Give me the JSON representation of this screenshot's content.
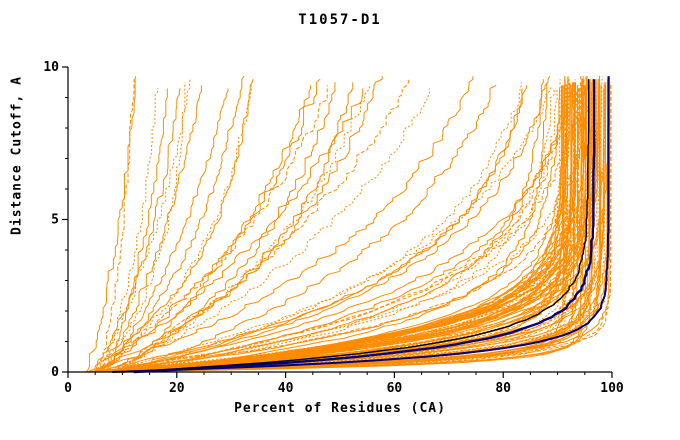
{
  "chart_data": {
    "type": "line",
    "title": "T1057-D1",
    "xlabel": "Percent of Residues (CA)",
    "ylabel": "Distance Cutoff, A",
    "xlim": [
      0,
      100
    ],
    "ylim": [
      0,
      10
    ],
    "xticks": [
      0,
      20,
      40,
      60,
      80,
      100
    ],
    "yticks": [
      0,
      5,
      10
    ],
    "x_minor_step": 5,
    "y_minor_step": 1,
    "grid": false,
    "legend": false,
    "background_color": "#ffffff",
    "axis_color": "#000000",
    "model_color": "#FF8C00",
    "seed": 20571,
    "curve_model": "x(y) = xmax - (xmax - x0) * exp(-y / tau); x = percent of residues under cutoff y",
    "model_families": [
      {
        "name": "dense-cluster",
        "count": 82,
        "x0": [
          3,
          9
        ],
        "xmax": [
          90,
          99.5
        ],
        "tau": [
          0.2,
          1.4
        ],
        "noise": 0.8
      },
      {
        "name": "mid-spread",
        "count": 16,
        "x0": [
          3,
          10
        ],
        "xmax": [
          85,
          97
        ],
        "tau": [
          1.5,
          4.0
        ],
        "noise": 1.5
      },
      {
        "name": "slow-diagonal",
        "count": 12,
        "x0": [
          4,
          10
        ],
        "xmax": [
          55,
          90
        ],
        "tau": [
          4.0,
          9.0
        ],
        "noise": 2.0
      },
      {
        "name": "poor-left",
        "count": 12,
        "x0": [
          3,
          7
        ],
        "xmax": [
          12,
          40
        ],
        "tau": [
          3.0,
          10.0
        ],
        "noise": 1.2
      }
    ],
    "highlight_curves": [
      {
        "name": "best-model-navy",
        "color": "#000080",
        "width": 2.4,
        "x0": 12,
        "xmax": 96.5,
        "tau": 0.75,
        "noise": 0.5,
        "ymax": 9.65
      },
      {
        "name": "reference-black",
        "color": "#000000",
        "width": 1.4,
        "x0": 10,
        "xmax": 95.5,
        "tau": 0.85,
        "noise": 0.5,
        "ymax": 9.6
      },
      {
        "name": "right-edge-navy",
        "color": "#000080",
        "width": 2.0,
        "x0": 8,
        "xmax": 99.2,
        "tau": 0.5,
        "noise": 0.3,
        "ymax": 9.7
      }
    ]
  }
}
